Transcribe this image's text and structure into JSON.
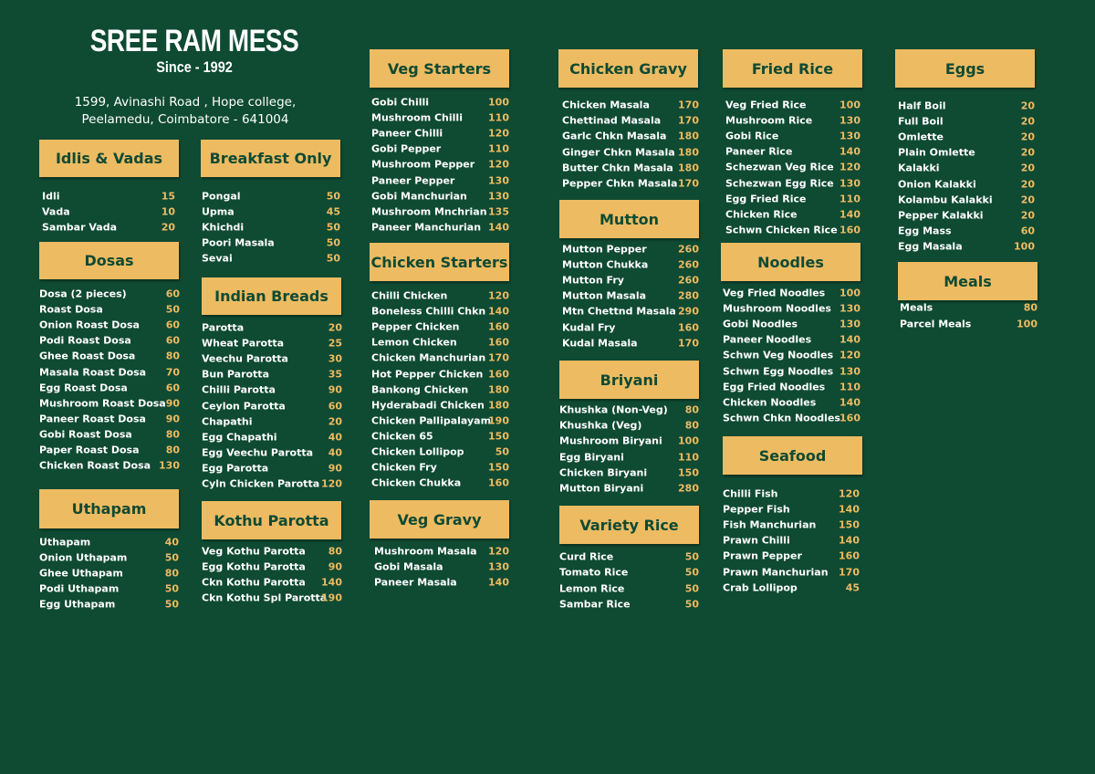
{
  "header": {
    "title": "SREE RAM MESS",
    "subtitle": "Since - 1992",
    "address": [
      "1599, Avinashi Road , Hope college,",
      "Peelamedu, Coimbatore - 641004"
    ]
  },
  "sections": [
    {
      "title": "Idlis & Vadas",
      "items": [
        {
          "name": "Idli",
          "price": 15
        },
        {
          "name": "Vada",
          "price": 10
        },
        {
          "name": "Sambar Vada",
          "price": 20
        }
      ]
    },
    {
      "title": "Dosas",
      "items": [
        {
          "name": "Dosa (2 pieces)",
          "price": 60
        },
        {
          "name": "Roast Dosa",
          "price": 50
        },
        {
          "name": "Onion Roast Dosa",
          "price": 60
        },
        {
          "name": "Podi Roast Dosa",
          "price": 60
        },
        {
          "name": "Ghee Roast Dosa",
          "price": 80
        },
        {
          "name": "Masala Roast Dosa",
          "price": 70
        },
        {
          "name": "Egg Roast Dosa",
          "price": 60
        },
        {
          "name": "Mushroom Roast Dosa",
          "price": 90
        },
        {
          "name": "Paneer Roast Dosa",
          "price": 90
        },
        {
          "name": "Gobi Roast Dosa",
          "price": 80
        },
        {
          "name": "Paper Roast Dosa",
          "price": 80
        },
        {
          "name": "Chicken Roast Dosa",
          "price": 130
        }
      ]
    },
    {
      "title": "Uthapam",
      "items": [
        {
          "name": "Uthapam",
          "price": 40
        },
        {
          "name": "Onion Uthapam",
          "price": 50
        },
        {
          "name": "Ghee Uthapam",
          "price": 80
        },
        {
          "name": "Podi Uthapam",
          "price": 50
        },
        {
          "name": "Egg Uthapam",
          "price": 50
        }
      ]
    },
    {
      "title": "Breakfast Only",
      "items": [
        {
          "name": "Pongal",
          "price": 50
        },
        {
          "name": "Upma",
          "price": 45
        },
        {
          "name": "Khichdi",
          "price": 50
        },
        {
          "name": "Poori Masala",
          "price": 50
        },
        {
          "name": "Sevai",
          "price": 50
        }
      ]
    },
    {
      "title": "Indian Breads",
      "items": [
        {
          "name": "Parotta",
          "price": 20
        },
        {
          "name": "Wheat Parotta",
          "price": 25
        },
        {
          "name": "Veechu Parotta",
          "price": 30
        },
        {
          "name": "Bun Parotta",
          "price": 35
        },
        {
          "name": "Chilli Parotta",
          "price": 90
        },
        {
          "name": "Ceylon Parotta",
          "price": 60
        },
        {
          "name": "Chapathi",
          "price": 20
        },
        {
          "name": "Egg Chapathi",
          "price": 40
        },
        {
          "name": "Egg Veechu Parotta",
          "price": 40
        },
        {
          "name": "Egg Parotta",
          "price": 90
        },
        {
          "name": "Cyln Chicken Parotta",
          "price": 120
        }
      ]
    },
    {
      "title": "Kothu Parotta",
      "items": [
        {
          "name": "Veg Kothu Parotta",
          "price": 80
        },
        {
          "name": "Egg Kothu Parotta",
          "price": 90
        },
        {
          "name": "Ckn Kothu Parotta",
          "price": 140
        },
        {
          "name": "Ckn Kothu Spl Parotta",
          "price": 190
        }
      ]
    },
    {
      "title": "Veg Starters",
      "items": [
        {
          "name": "Gobi Chilli",
          "price": 100
        },
        {
          "name": "Mushroom Chilli",
          "price": 110
        },
        {
          "name": "Paneer Chilli",
          "price": 120
        },
        {
          "name": "Gobi Pepper",
          "price": 110
        },
        {
          "name": "Mushroom Pepper",
          "price": 120
        },
        {
          "name": "Paneer Pepper",
          "price": 130
        },
        {
          "name": "Gobi Manchurian",
          "price": 130
        },
        {
          "name": "Mushroom Mnchrian",
          "price": 135
        },
        {
          "name": "Paneer Manchurian",
          "price": 140
        }
      ]
    },
    {
      "title": "Chicken Starters",
      "items": [
        {
          "name": "Chilli Chicken",
          "price": 120
        },
        {
          "name": "Boneless Chilli Chkn",
          "price": 140
        },
        {
          "name": "Pepper Chicken",
          "price": 160
        },
        {
          "name": "Lemon Chicken",
          "price": 160
        },
        {
          "name": "Chicken Manchurian",
          "price": 170
        },
        {
          "name": "Hot Pepper Chicken",
          "price": 160
        },
        {
          "name": "Bankong Chicken",
          "price": 180
        },
        {
          "name": "Hyderabadi Chicken",
          "price": 180
        },
        {
          "name": "Chicken Pallipalayam",
          "price": 190
        },
        {
          "name": "Chicken 65",
          "price": 150
        },
        {
          "name": "Chicken Lollipop",
          "price": 50
        },
        {
          "name": "Chicken Fry",
          "price": 150
        },
        {
          "name": "Chicken Chukka",
          "price": 160
        }
      ]
    },
    {
      "title": "Veg Gravy",
      "items": [
        {
          "name": "Mushroom Masala",
          "price": 120
        },
        {
          "name": "Gobi Masala",
          "price": 130
        },
        {
          "name": "Paneer Masala",
          "price": 140
        }
      ]
    },
    {
      "title": "Chicken Gravy",
      "items": [
        {
          "name": "Chicken Masala",
          "price": 170
        },
        {
          "name": "Chettinad Masala",
          "price": 170
        },
        {
          "name": "Garlc Chkn Masala",
          "price": 180
        },
        {
          "name": "Ginger Chkn Masala",
          "price": 180
        },
        {
          "name": "Butter Chkn Masala",
          "price": 180
        },
        {
          "name": "Pepper Chkn Masala",
          "price": 170
        }
      ]
    },
    {
      "title": "Mutton",
      "items": [
        {
          "name": "Mutton Pepper",
          "price": 260
        },
        {
          "name": "Mutton Chukka",
          "price": 260
        },
        {
          "name": "Mutton Fry",
          "price": 260
        },
        {
          "name": "Mutton Masala",
          "price": 280
        },
        {
          "name": "Mtn Chettnd Masala",
          "price": 290
        },
        {
          "name": "Kudal Fry",
          "price": 160
        },
        {
          "name": "Kudal Masala",
          "price": 170
        }
      ]
    },
    {
      "title": "Briyani",
      "items": [
        {
          "name": "Khushka (Non-Veg)",
          "price": 80
        },
        {
          "name": "Khushka (Veg)",
          "price": 80
        },
        {
          "name": "Mushroom Biryani",
          "price": 100
        },
        {
          "name": "Egg Biryani",
          "price": 110
        },
        {
          "name": "Chicken Biryani",
          "price": 150
        },
        {
          "name": "Mutton Biryani",
          "price": 280
        }
      ]
    },
    {
      "title": "Variety Rice",
      "items": [
        {
          "name": "Curd Rice",
          "price": 50
        },
        {
          "name": "Tomato Rice",
          "price": 50
        },
        {
          "name": "Lemon Rice",
          "price": 50
        },
        {
          "name": "Sambar Rice",
          "price": 50
        }
      ]
    },
    {
      "title": "Fried Rice",
      "items": [
        {
          "name": "Veg Fried Rice",
          "price": 100
        },
        {
          "name": "Mushroom Rice",
          "price": 130
        },
        {
          "name": "Gobi Rice",
          "price": 130
        },
        {
          "name": "Paneer Rice",
          "price": 140
        },
        {
          "name": "Schezwan Veg Rice",
          "price": 120
        },
        {
          "name": "Schezwan Egg Rice",
          "price": 130
        },
        {
          "name": "Egg Fried Rice",
          "price": 110
        },
        {
          "name": "Chicken Rice",
          "price": 140
        },
        {
          "name": "Schwn Chicken Rice",
          "price": 160
        }
      ]
    },
    {
      "title": "Noodles",
      "items": [
        {
          "name": "Veg Fried Noodles",
          "price": 100
        },
        {
          "name": "Mushroom Noodles",
          "price": 130
        },
        {
          "name": "Gobi Noodles",
          "price": 130
        },
        {
          "name": "Paneer Noodles",
          "price": 140
        },
        {
          "name": "Schwn Veg Noodles",
          "price": 120
        },
        {
          "name": "Schwn Egg Noodles",
          "price": 130
        },
        {
          "name": "Egg Fried Noodles",
          "price": 110
        },
        {
          "name": "Chicken Noodles",
          "price": 140
        },
        {
          "name": "Schwn Chkn Noodles",
          "price": 160
        }
      ]
    },
    {
      "title": "Seafood",
      "items": [
        {
          "name": "Chilli Fish",
          "price": 120
        },
        {
          "name": "Pepper Fish",
          "price": 140
        },
        {
          "name": "Fish Manchurian",
          "price": 150
        },
        {
          "name": "Prawn Chilli",
          "price": 140
        },
        {
          "name": "Prawn Pepper",
          "price": 160
        },
        {
          "name": "Prawn Manchurian",
          "price": 170
        },
        {
          "name": "Crab Lollipop",
          "price": 45
        }
      ]
    },
    {
      "title": "Eggs",
      "items": [
        {
          "name": "Half Boil",
          "price": 20
        },
        {
          "name": "Full Boil",
          "price": 20
        },
        {
          "name": "Omlette",
          "price": 20
        },
        {
          "name": "Plain Omlette",
          "price": 20
        },
        {
          "name": "Kalakki",
          "price": 20
        },
        {
          "name": "Onion Kalakki",
          "price": 20
        },
        {
          "name": "Kolambu Kalakki",
          "price": 20
        },
        {
          "name": "Pepper Kalakki",
          "price": 20
        },
        {
          "name": "Egg Mass",
          "price": 60
        },
        {
          "name": "Egg Masala",
          "price": 100
        }
      ]
    },
    {
      "title": "Meals",
      "items": [
        {
          "name": "Meals",
          "price": 80
        },
        {
          "name": "Parcel Meals",
          "price": 100
        }
      ]
    }
  ]
}
